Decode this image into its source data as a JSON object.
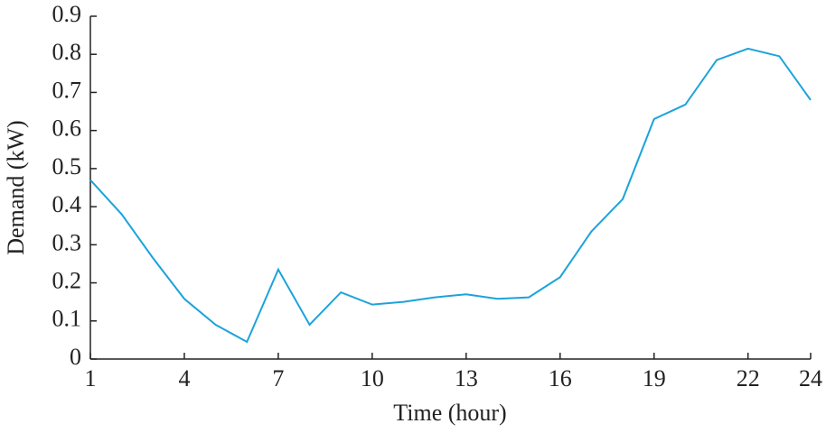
{
  "chart_data": {
    "type": "line",
    "x_label": "Time (hour)",
    "y_label": "Demand (kW)",
    "x": [
      1,
      2,
      3,
      4,
      5,
      6,
      7,
      8,
      9,
      10,
      11,
      12,
      13,
      14,
      15,
      16,
      17,
      18,
      19,
      20,
      21,
      22,
      23,
      24
    ],
    "series": [
      {
        "color": "#1ba3dc",
        "values": [
          0.47,
          0.38,
          0.265,
          0.158,
          0.09,
          0.045,
          0.235,
          0.09,
          0.175,
          0.143,
          0.15,
          0.162,
          0.17,
          0.158,
          0.162,
          0.215,
          0.335,
          0.42,
          0.63,
          0.668,
          0.785,
          0.815,
          0.795,
          0.68
        ]
      }
    ],
    "xlim": [
      1,
      24
    ],
    "xticks": [
      1,
      4,
      7,
      10,
      13,
      16,
      19,
      22,
      24
    ],
    "ylim": [
      0,
      0.9
    ],
    "yticks": [
      0,
      0.1,
      0.2,
      0.3,
      0.4,
      0.5,
      0.6,
      0.7,
      0.8,
      0.9
    ]
  }
}
